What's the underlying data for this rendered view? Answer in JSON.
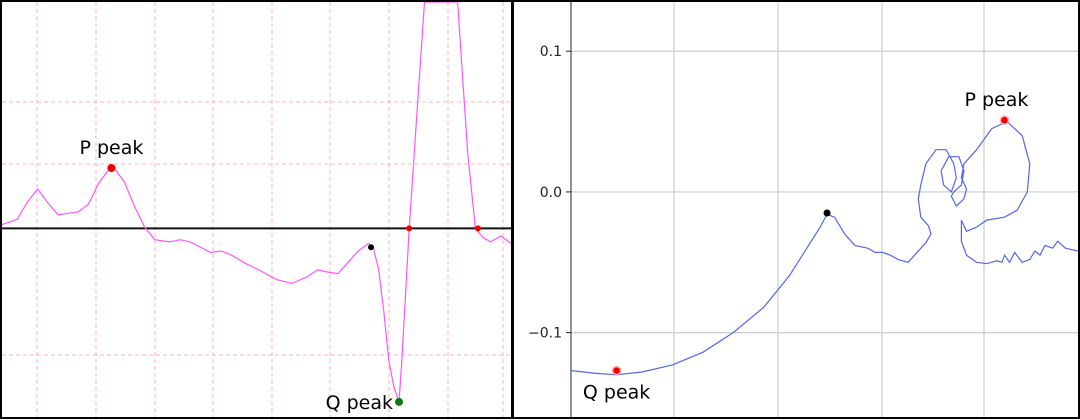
{
  "chart_data": [
    {
      "type": "line",
      "title": "",
      "xlabel": "",
      "ylabel": "",
      "grid": true,
      "grid_color": "#ffb3b3",
      "line_color": "#ff55ff",
      "baseline": 0,
      "baseline_color": "#111111",
      "xlim": [
        0,
        100
      ],
      "ylim": [
        -2.5,
        3.0
      ],
      "series": [
        {
          "values": [
            [
              0,
              0.05
            ],
            [
              3,
              0.12
            ],
            [
              5,
              0.35
            ],
            [
              7,
              0.52
            ],
            [
              9,
              0.34
            ],
            [
              11,
              0.18
            ],
            [
              13,
              0.2
            ],
            [
              15,
              0.22
            ],
            [
              17,
              0.32
            ],
            [
              19,
              0.6
            ],
            [
              21,
              0.78
            ],
            [
              22,
              0.8
            ],
            [
              24,
              0.62
            ],
            [
              26,
              0.3
            ],
            [
              28,
              0.02
            ],
            [
              30,
              -0.15
            ],
            [
              33,
              -0.18
            ],
            [
              35,
              -0.15
            ],
            [
              37,
              -0.18
            ],
            [
              39,
              -0.25
            ],
            [
              41,
              -0.32
            ],
            [
              43,
              -0.3
            ],
            [
              45,
              -0.35
            ],
            [
              48,
              -0.47
            ],
            [
              51,
              -0.57
            ],
            [
              54,
              -0.68
            ],
            [
              57,
              -0.73
            ],
            [
              60,
              -0.64
            ],
            [
              62,
              -0.55
            ],
            [
              64,
              -0.58
            ],
            [
              66,
              -0.6
            ],
            [
              68,
              -0.45
            ],
            [
              70,
              -0.3
            ],
            [
              72,
              -0.2
            ],
            [
              73,
              -0.27
            ],
            [
              74,
              -0.55
            ],
            [
              75,
              -1.1
            ],
            [
              76,
              -1.75
            ],
            [
              77,
              -2.1
            ],
            [
              78,
              -2.3
            ],
            [
              78.5,
              -1.8
            ],
            [
              79.5,
              -0.6
            ],
            [
              80,
              0.0
            ],
            [
              81.5,
              1.5
            ],
            [
              83,
              3.0
            ],
            [
              84,
              3.0
            ],
            [
              88,
              3.0
            ],
            [
              89.5,
              3.0
            ],
            [
              90.5,
              2.0
            ],
            [
              91.5,
              1.0
            ],
            [
              93,
              0.0
            ],
            [
              94.5,
              -0.12
            ],
            [
              96,
              -0.18
            ],
            [
              98,
              -0.1
            ],
            [
              100,
              -0.2
            ]
          ]
        }
      ],
      "markers": [
        {
          "label": "P peak",
          "x": 21.5,
          "y": 0.8,
          "color": "#ee0000"
        },
        {
          "label": "Q peak",
          "x": 78,
          "y": -2.3,
          "color": "#117711"
        },
        {
          "label": "",
          "x": 72.5,
          "y": -0.25,
          "color": "#000000"
        },
        {
          "label": "",
          "x": 80,
          "y": 0.0,
          "color": "#ee0000"
        },
        {
          "label": "",
          "x": 93.5,
          "y": 0.0,
          "color": "#ee0000"
        }
      ]
    },
    {
      "type": "line",
      "title": "",
      "xlabel": "",
      "ylabel": "",
      "grid": true,
      "grid_color": "#cccccc",
      "line_color": "#5566ee",
      "xlim": [
        0,
        1
      ],
      "ylim": [
        -0.16,
        0.135
      ],
      "yticks": [
        0.1,
        0.0,
        -0.1
      ],
      "ytick_labels": [
        "0.1",
        "0.0",
        "−0.1"
      ],
      "series": [
        {
          "values": [
            [
              0.0,
              -0.127
            ],
            [
              0.05,
              -0.129
            ],
            [
              0.09,
              -0.13
            ],
            [
              0.14,
              -0.128
            ],
            [
              0.2,
              -0.123
            ],
            [
              0.26,
              -0.114
            ],
            [
              0.32,
              -0.1
            ],
            [
              0.38,
              -0.082
            ],
            [
              0.43,
              -0.06
            ],
            [
              0.465,
              -0.04
            ],
            [
              0.49,
              -0.026
            ],
            [
              0.505,
              -0.016
            ],
            [
              0.52,
              -0.018
            ],
            [
              0.54,
              -0.03
            ],
            [
              0.56,
              -0.038
            ],
            [
              0.585,
              -0.04
            ],
            [
              0.6,
              -0.043
            ],
            [
              0.615,
              -0.043
            ],
            [
              0.63,
              -0.045
            ],
            [
              0.645,
              -0.048
            ],
            [
              0.665,
              -0.05
            ],
            [
              0.68,
              -0.044
            ],
            [
              0.7,
              -0.036
            ],
            [
              0.71,
              -0.03
            ],
            [
              0.705,
              -0.024
            ],
            [
              0.69,
              -0.018
            ],
            [
              0.685,
              -0.005
            ],
            [
              0.69,
              0.005
            ],
            [
              0.7,
              0.02
            ],
            [
              0.72,
              0.03
            ],
            [
              0.74,
              0.03
            ],
            [
              0.755,
              0.02
            ],
            [
              0.76,
              0.01
            ],
            [
              0.75,
              0.0
            ],
            [
              0.735,
              0.005
            ],
            [
              0.73,
              0.015
            ],
            [
              0.745,
              0.025
            ],
            [
              0.765,
              0.025
            ],
            [
              0.775,
              0.015
            ],
            [
              0.77,
              0.005
            ],
            [
              0.755,
              0.0
            ],
            [
              0.75,
              -0.003
            ],
            [
              0.76,
              -0.01
            ],
            [
              0.775,
              -0.005
            ],
            [
              0.78,
              0.002
            ],
            [
              0.77,
              0.01
            ],
            [
              0.775,
              0.02
            ],
            [
              0.8,
              0.03
            ],
            [
              0.83,
              0.045
            ],
            [
              0.86,
              0.05
            ],
            [
              0.89,
              0.04
            ],
            [
              0.905,
              0.02
            ],
            [
              0.9,
              0.0
            ],
            [
              0.88,
              -0.013
            ],
            [
              0.855,
              -0.018
            ],
            [
              0.82,
              -0.02
            ],
            [
              0.8,
              -0.025
            ],
            [
              0.78,
              -0.028
            ],
            [
              0.77,
              -0.02
            ],
            [
              0.77,
              -0.035
            ],
            [
              0.78,
              -0.045
            ],
            [
              0.8,
              -0.05
            ],
            [
              0.82,
              -0.051
            ],
            [
              0.84,
              -0.049
            ],
            [
              0.85,
              -0.05
            ],
            [
              0.855,
              -0.045
            ],
            [
              0.865,
              -0.05
            ],
            [
              0.875,
              -0.043
            ],
            [
              0.89,
              -0.05
            ],
            [
              0.905,
              -0.048
            ],
            [
              0.915,
              -0.042
            ],
            [
              0.925,
              -0.045
            ],
            [
              0.935,
              -0.038
            ],
            [
              0.95,
              -0.04
            ],
            [
              0.96,
              -0.035
            ],
            [
              0.975,
              -0.04
            ],
            [
              1.0,
              -0.042
            ]
          ]
        }
      ],
      "markers": [
        {
          "label": "Q peak",
          "x": 0.09,
          "y": -0.127,
          "color": "#ee0000",
          "ring": true
        },
        {
          "label": "P peak",
          "x": 0.855,
          "y": 0.051,
          "color": "#ee0000",
          "ring": true
        },
        {
          "label": "",
          "x": 0.505,
          "y": -0.015,
          "color": "#000000"
        }
      ]
    }
  ]
}
